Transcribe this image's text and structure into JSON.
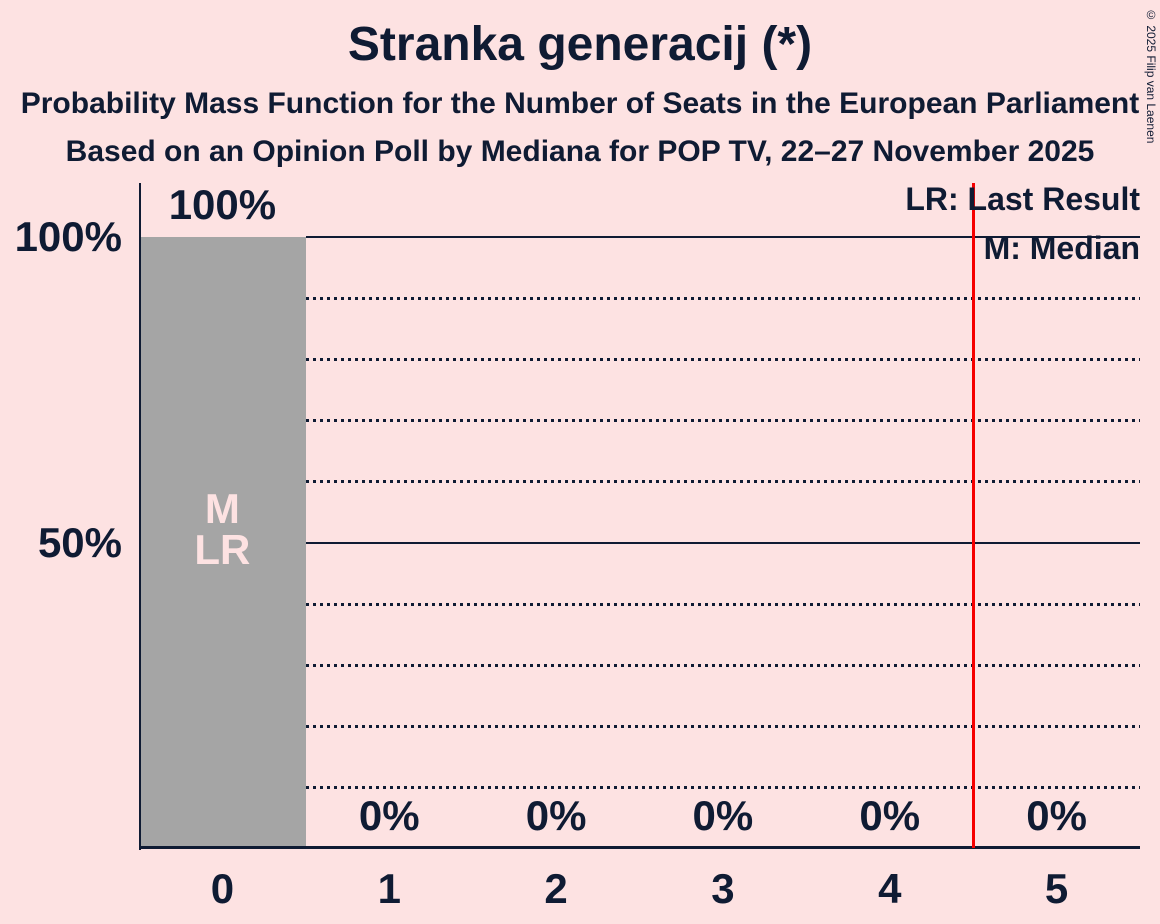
{
  "header": {
    "title": "Stranka generacij (*)",
    "subtitle1": "Probability Mass Function for the Number of Seats in the European Parliament",
    "subtitle2": "Based on an Opinion Poll by Mediana for POP TV, 22–27 November 2025"
  },
  "legend": {
    "lr": "LR: Last Result",
    "m": "M: Median"
  },
  "copyright": "© 2025 Filip van Laenen",
  "colors": {
    "background": "#fde2e2",
    "text": "#0f1b33",
    "bar": "#a5a5a5",
    "in_bar_label": "#fde2e2",
    "threshold_line": "#f60000"
  },
  "chart_data": {
    "type": "bar",
    "title": "Stranka generacij (*)",
    "subtitle1": "Probability Mass Function for the Number of Seats in the European Parliament",
    "subtitle2": "Based on an Opinion Poll by Mediana for POP TV, 22–27 November 2025",
    "categories": [
      "0",
      "1",
      "2",
      "3",
      "4",
      "5"
    ],
    "values": [
      100,
      0,
      0,
      0,
      0,
      0
    ],
    "bar_labels": [
      "100%",
      "0%",
      "0%",
      "0%",
      "0%",
      "0%"
    ],
    "y_axis_labels": [
      {
        "text": "100%",
        "value": 100
      },
      {
        "text": "50%",
        "value": 50
      }
    ],
    "ylim": [
      0,
      100
    ],
    "gridlines_solid": [
      100,
      50
    ],
    "gridlines_dotted": [
      90,
      80,
      70,
      60,
      40,
      30,
      20,
      10
    ],
    "threshold_line_x": 4.5,
    "annotations": [
      {
        "category_index": 0,
        "lines": [
          "M",
          "LR"
        ]
      }
    ],
    "legend_entries": [
      "LR: Last Result",
      "M: Median"
    ],
    "legend_position": "top-right",
    "grid": "horizontal-only"
  }
}
